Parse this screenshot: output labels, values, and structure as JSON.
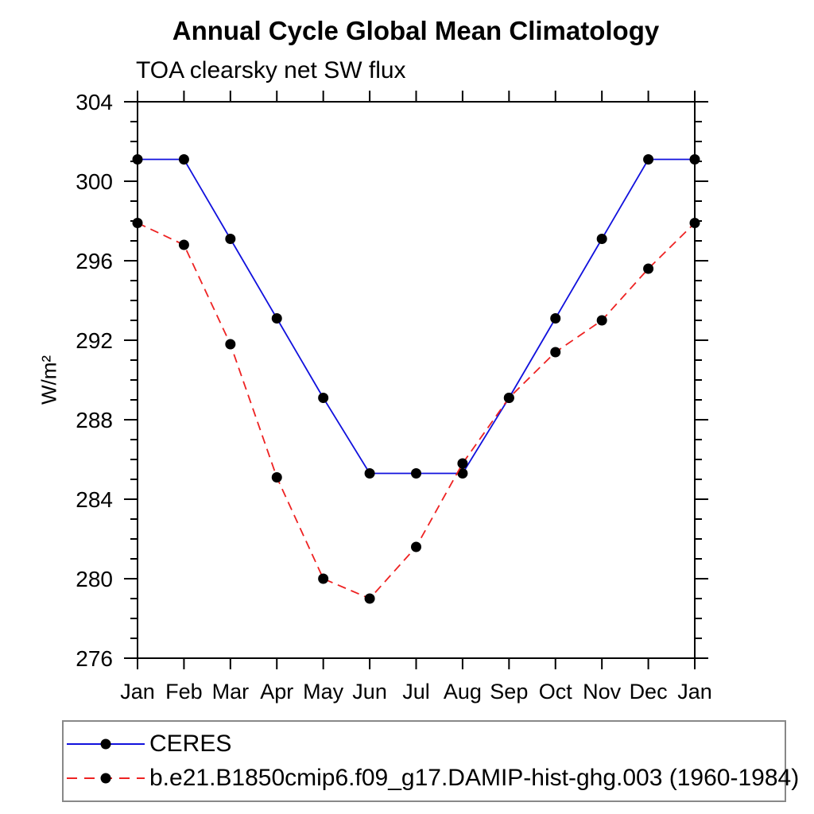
{
  "chart_data": {
    "type": "line",
    "title": "Annual Cycle Global Mean Climatology",
    "subtitle": "TOA clearsky net SW flux",
    "ylabel": "W/m²",
    "xlabel": "",
    "x_categories": [
      "Jan",
      "Feb",
      "Mar",
      "Apr",
      "May",
      "Jun",
      "Jul",
      "Aug",
      "Sep",
      "Oct",
      "Nov",
      "Dec",
      "Jan"
    ],
    "ylim": [
      276,
      304
    ],
    "ytick_major_step": 4,
    "ytick_minor_step": 1,
    "ytick_labels": [
      "276",
      "280",
      "284",
      "288",
      "292",
      "296",
      "300",
      "304"
    ],
    "grid": false,
    "legend_position": "bottom-left-box",
    "series": [
      {
        "name": "CERES",
        "color": "#1111dd",
        "style": "solid",
        "marker": "circle",
        "marker_color": "#000000",
        "values": [
          301.1,
          301.1,
          297.1,
          293.1,
          289.1,
          285.3,
          285.3,
          285.3,
          289.1,
          293.1,
          297.1,
          301.1,
          301.1
        ]
      },
      {
        "name": "b.e21.B1850cmip6.f09_g17.DAMIP-hist-ghg.003 (1960-1984)",
        "color": "#ee2222",
        "style": "dashed",
        "marker": "circle",
        "marker_color": "#000000",
        "values": [
          297.9,
          296.8,
          291.8,
          285.1,
          280.0,
          279.0,
          281.6,
          285.8,
          289.1,
          291.4,
          293.0,
          295.6,
          297.9
        ]
      }
    ],
    "axis_color": "#000000",
    "text_color": "#000000"
  }
}
